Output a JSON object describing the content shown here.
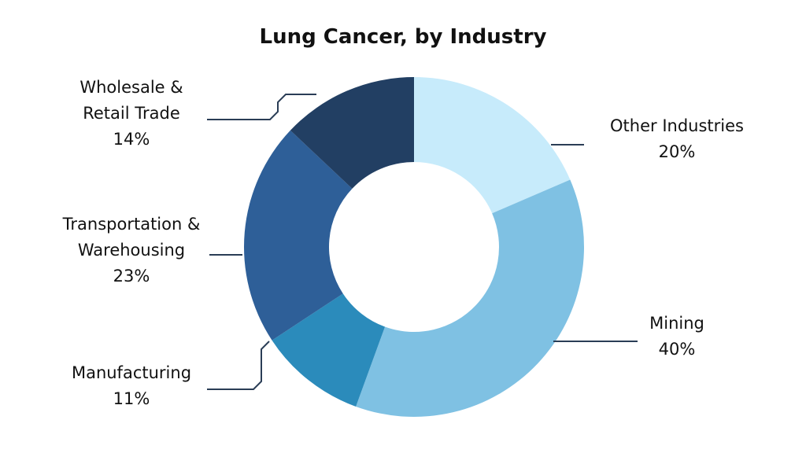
{
  "chart_data": {
    "type": "pie",
    "title": "Lung Cancer, by Industry",
    "donut": true,
    "slices": [
      {
        "label_lines": [
          "Other Industries"
        ],
        "percent_label": "20%",
        "value": 20,
        "color": "#c7ebfb"
      },
      {
        "label_lines": [
          "Mining"
        ],
        "percent_label": "40%",
        "value": 40,
        "color": "#7fc1e3"
      },
      {
        "label_lines": [
          "Manufacturing"
        ],
        "percent_label": "11%",
        "value": 11,
        "color": "#2b8bbb"
      },
      {
        "label_lines": [
          "Transportation &",
          "Warehousing"
        ],
        "percent_label": "23%",
        "value": 23,
        "color": "#2e5f98"
      },
      {
        "label_lines": [
          "Wholesale &",
          "Retail Trade"
        ],
        "percent_label": "14%",
        "value": 14,
        "color": "#223f63"
      }
    ],
    "leader_color": "#2a3d56"
  }
}
